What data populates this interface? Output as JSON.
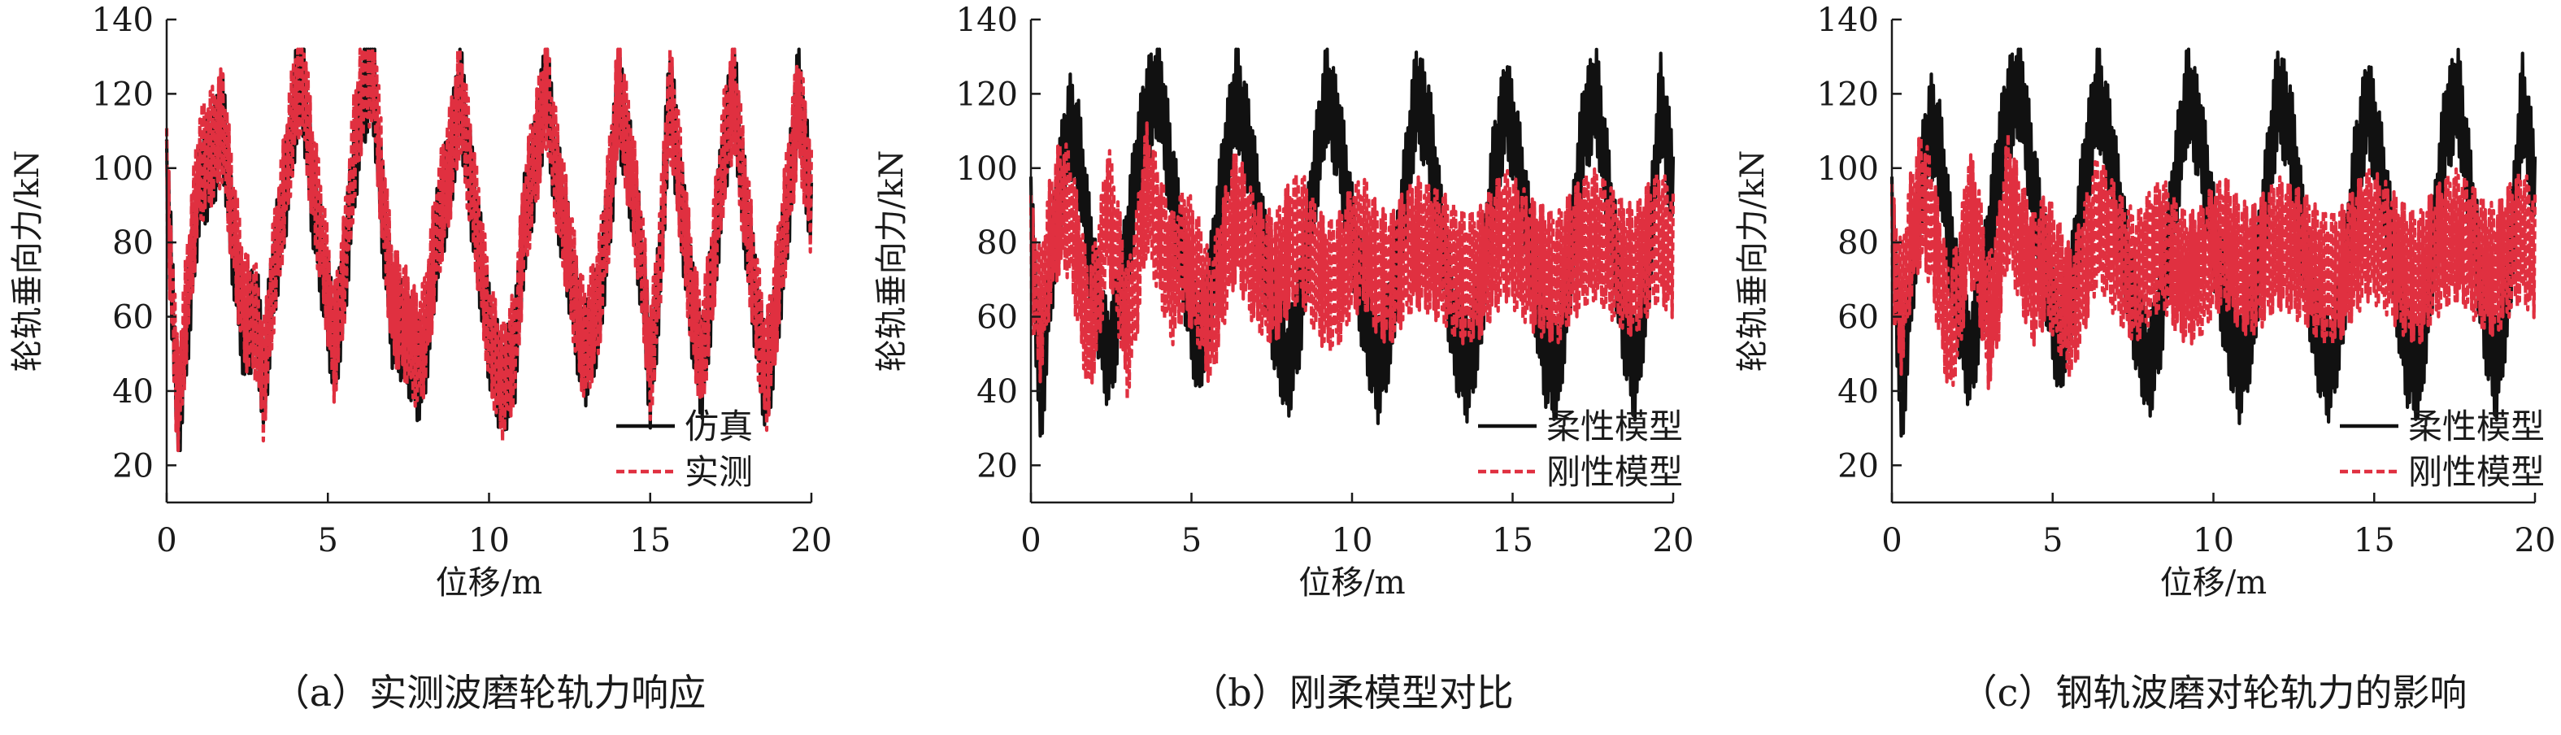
{
  "chart_data": [
    {
      "type": "line",
      "caption": "（a）实测波磨轮轨力响应",
      "xlabel": "位移/m",
      "ylabel": "轮轨垂向力/kN",
      "xlim": [
        0,
        20
      ],
      "ylim": [
        10,
        140
      ],
      "xticks": [
        0,
        5,
        10,
        15,
        20
      ],
      "yticks": [
        20,
        40,
        60,
        80,
        100,
        120,
        140
      ],
      "grid": false,
      "legend_position": "bottom-right",
      "series": [
        {
          "name": "仿真",
          "color": "#111111",
          "style": "solid",
          "x": [
            0,
            0.35,
            0.7,
            1.0,
            1.4,
            1.75,
            2.0,
            2.4,
            2.8,
            3.0,
            3.3,
            3.7,
            4.0,
            4.2,
            4.5,
            4.9,
            5.2,
            5.5,
            5.8,
            6.1,
            6.4,
            6.7,
            7.0,
            7.4,
            7.8,
            8.0,
            8.4,
            8.8,
            9.1,
            9.4,
            9.8,
            10.0,
            10.4,
            10.8,
            11.1,
            11.4,
            11.8,
            12.0,
            12.4,
            12.8,
            13.0,
            13.4,
            13.8,
            14.0,
            14.4,
            14.8,
            15.0,
            15.3,
            15.6,
            15.9,
            16.3,
            16.6,
            16.9,
            17.3,
            17.6,
            17.9,
            18.3,
            18.6,
            18.9,
            19.3,
            19.6,
            20.0
          ],
          "y": [
            100,
            30,
            65,
            95,
            102,
            112,
            85,
            55,
            62,
            40,
            70,
            95,
            118,
            125,
            95,
            70,
            50,
            68,
            100,
            120,
            125,
            88,
            60,
            55,
            45,
            50,
            82,
            100,
            122,
            98,
            70,
            55,
            40,
            50,
            85,
            100,
            124,
            102,
            80,
            55,
            50,
            62,
            95,
            120,
            98,
            68,
            42,
            72,
            122,
            96,
            62,
            45,
            68,
            104,
            122,
            92,
            60,
            40,
            60,
            92,
            122,
            88
          ],
          "amplitude": 14
        },
        {
          "name": "实测",
          "color": "#e03040",
          "style": "dashed",
          "x": [
            0,
            0.35,
            0.7,
            1.0,
            1.4,
            1.75,
            2.0,
            2.4,
            2.8,
            3.0,
            3.3,
            3.7,
            4.0,
            4.2,
            4.5,
            4.9,
            5.2,
            5.5,
            5.8,
            6.1,
            6.4,
            6.7,
            7.0,
            7.4,
            7.8,
            8.0,
            8.4,
            8.8,
            9.1,
            9.4,
            9.8,
            10.0,
            10.4,
            10.8,
            11.1,
            11.4,
            11.8,
            12.0,
            12.4,
            12.8,
            13.0,
            13.4,
            13.8,
            14.0,
            14.4,
            14.8,
            15.0,
            15.3,
            15.6,
            15.9,
            16.3,
            16.6,
            16.9,
            17.3,
            17.6,
            17.9,
            18.3,
            18.6,
            18.9,
            19.3,
            19.6,
            20.0
          ],
          "y": [
            95,
            35,
            72,
            100,
            106,
            112,
            90,
            62,
            58,
            42,
            70,
            98,
            120,
            126,
            100,
            75,
            52,
            72,
            104,
            124,
            128,
            92,
            64,
            58,
            50,
            55,
            84,
            102,
            120,
            100,
            72,
            56,
            42,
            52,
            86,
            102,
            122,
            104,
            82,
            58,
            52,
            65,
            98,
            122,
            100,
            70,
            45,
            75,
            120,
            98,
            64,
            48,
            70,
            106,
            120,
            94,
            62,
            44,
            64,
            95,
            118,
            90
          ],
          "amplitude": 16
        }
      ]
    },
    {
      "type": "line",
      "caption": "（b）刚柔模型对比",
      "xlabel": "位移/m",
      "ylabel": "轮轨垂向力/kN",
      "xlim": [
        0,
        20
      ],
      "ylim": [
        10,
        140
      ],
      "xticks": [
        0,
        5,
        10,
        15,
        20
      ],
      "yticks": [
        20,
        40,
        60,
        80,
        100,
        120,
        140
      ],
      "grid": false,
      "legend_position": "bottom-right",
      "series": [
        {
          "name": "柔性模型",
          "color": "#111111",
          "style": "solid",
          "x": [
            0,
            0.3,
            0.6,
            0.9,
            1.2,
            1.5,
            1.8,
            2.1,
            2.4,
            2.7,
            3.0,
            3.3,
            3.6,
            4.0,
            4.4,
            4.8,
            5.2,
            5.6,
            6.0,
            6.4,
            6.8,
            7.2,
            7.6,
            8.0,
            8.4,
            8.8,
            9.2,
            9.6,
            10.0,
            10.4,
            10.8,
            11.2,
            11.6,
            12.0,
            12.4,
            12.8,
            13.2,
            13.6,
            14.0,
            14.4,
            14.8,
            15.2,
            15.6,
            16.0,
            16.4,
            16.8,
            17.2,
            17.6,
            18.0,
            18.4,
            18.8,
            19.2,
            19.6,
            20.0
          ],
          "y": [
            90,
            35,
            70,
            95,
            112,
            104,
            80,
            62,
            48,
            60,
            78,
            100,
            115,
            122,
            95,
            72,
            50,
            68,
            98,
            120,
            105,
            80,
            58,
            45,
            62,
            95,
            120,
            108,
            82,
            60,
            45,
            58,
            90,
            120,
            110,
            80,
            55,
            45,
            62,
            98,
            118,
            100,
            75,
            50,
            45,
            75,
            110,
            120,
            92,
            62,
            45,
            70,
            118,
            95
          ],
          "amplitude": 14
        },
        {
          "name": "刚性模型",
          "color": "#e03040",
          "style": "dashed",
          "x": [
            0,
            0.3,
            0.6,
            0.9,
            1.2,
            1.5,
            1.8,
            2.1,
            2.4,
            2.7,
            3.0,
            3.3,
            3.6,
            4.0,
            4.4,
            4.8,
            5.2,
            5.6,
            6.0,
            6.4,
            6.8,
            7.2,
            7.6,
            8.0,
            8.4,
            8.8,
            9.2,
            9.6,
            10.0,
            10.4,
            10.8,
            11.2,
            11.6,
            12.0,
            12.4,
            12.8,
            13.2,
            13.6,
            14.0,
            14.4,
            14.8,
            15.2,
            15.6,
            16.0,
            16.4,
            16.8,
            17.2,
            17.6,
            18.0,
            18.4,
            18.8,
            19.2,
            19.6,
            20.0
          ],
          "y": [
            75,
            60,
            80,
            90,
            88,
            72,
            55,
            68,
            90,
            75,
            55,
            72,
            95,
            82,
            70,
            78,
            70,
            58,
            75,
            88,
            78,
            72,
            70,
            78,
            82,
            74,
            68,
            70,
            78,
            80,
            72,
            70,
            76,
            80,
            78,
            76,
            72,
            70,
            72,
            78,
            82,
            78,
            74,
            72,
            70,
            76,
            80,
            82,
            78,
            74,
            72,
            78,
            82,
            76
          ],
          "amplitude": 18
        }
      ]
    },
    {
      "type": "line",
      "caption": "（c）钢轨波磨对轮轨力的影响",
      "xlabel": "位移/m",
      "ylabel": "轮轨垂向力/kN",
      "xlim": [
        0,
        20
      ],
      "ylim": [
        10,
        140
      ],
      "xticks": [
        0,
        5,
        10,
        15,
        20
      ],
      "yticks": [
        20,
        40,
        60,
        80,
        100,
        120,
        140
      ],
      "grid": false,
      "legend_position": "bottom-right",
      "series": [
        {
          "name": "柔性模型",
          "color": "#111111",
          "style": "solid",
          "x": [
            0,
            0.3,
            0.6,
            0.9,
            1.2,
            1.5,
            1.8,
            2.1,
            2.4,
            2.7,
            3.0,
            3.3,
            3.6,
            4.0,
            4.4,
            4.8,
            5.2,
            5.6,
            6.0,
            6.4,
            6.8,
            7.2,
            7.6,
            8.0,
            8.4,
            8.8,
            9.2,
            9.6,
            10.0,
            10.4,
            10.8,
            11.2,
            11.6,
            12.0,
            12.4,
            12.8,
            13.2,
            13.6,
            14.0,
            14.4,
            14.8,
            15.2,
            15.6,
            16.0,
            16.4,
            16.8,
            17.2,
            17.6,
            18.0,
            18.4,
            18.8,
            19.2,
            19.6,
            20.0
          ],
          "y": [
            90,
            35,
            70,
            95,
            112,
            104,
            80,
            62,
            48,
            60,
            78,
            100,
            115,
            122,
            95,
            72,
            50,
            68,
            98,
            120,
            105,
            80,
            58,
            45,
            62,
            95,
            120,
            108,
            82,
            60,
            45,
            58,
            90,
            120,
            110,
            80,
            55,
            45,
            62,
            98,
            118,
            100,
            75,
            50,
            45,
            75,
            110,
            120,
            92,
            62,
            45,
            70,
            118,
            95
          ],
          "amplitude": 14
        },
        {
          "name": "刚性模型",
          "color": "#e03040",
          "style": "dashed",
          "x": [
            0,
            0.3,
            0.6,
            0.9,
            1.2,
            1.5,
            1.8,
            2.1,
            2.4,
            2.7,
            3.0,
            3.3,
            3.6,
            4.0,
            4.4,
            4.8,
            5.2,
            5.6,
            6.0,
            6.4,
            6.8,
            7.2,
            7.6,
            8.0,
            8.4,
            8.8,
            9.2,
            9.6,
            10.0,
            10.4,
            10.8,
            11.2,
            11.6,
            12.0,
            12.4,
            12.8,
            13.2,
            13.6,
            14.0,
            14.4,
            14.8,
            15.2,
            15.6,
            16.0,
            16.4,
            16.8,
            17.2,
            17.6,
            18.0,
            18.4,
            18.8,
            19.2,
            19.6,
            20.0
          ],
          "y": [
            78,
            62,
            82,
            92,
            86,
            70,
            55,
            66,
            88,
            78,
            58,
            70,
            92,
            80,
            70,
            76,
            68,
            60,
            74,
            86,
            80,
            74,
            70,
            76,
            80,
            74,
            70,
            72,
            78,
            80,
            74,
            72,
            76,
            80,
            78,
            76,
            72,
            70,
            72,
            78,
            82,
            80,
            76,
            72,
            70,
            76,
            80,
            82,
            78,
            74,
            72,
            78,
            82,
            76
          ],
          "amplitude": 18
        }
      ]
    }
  ]
}
